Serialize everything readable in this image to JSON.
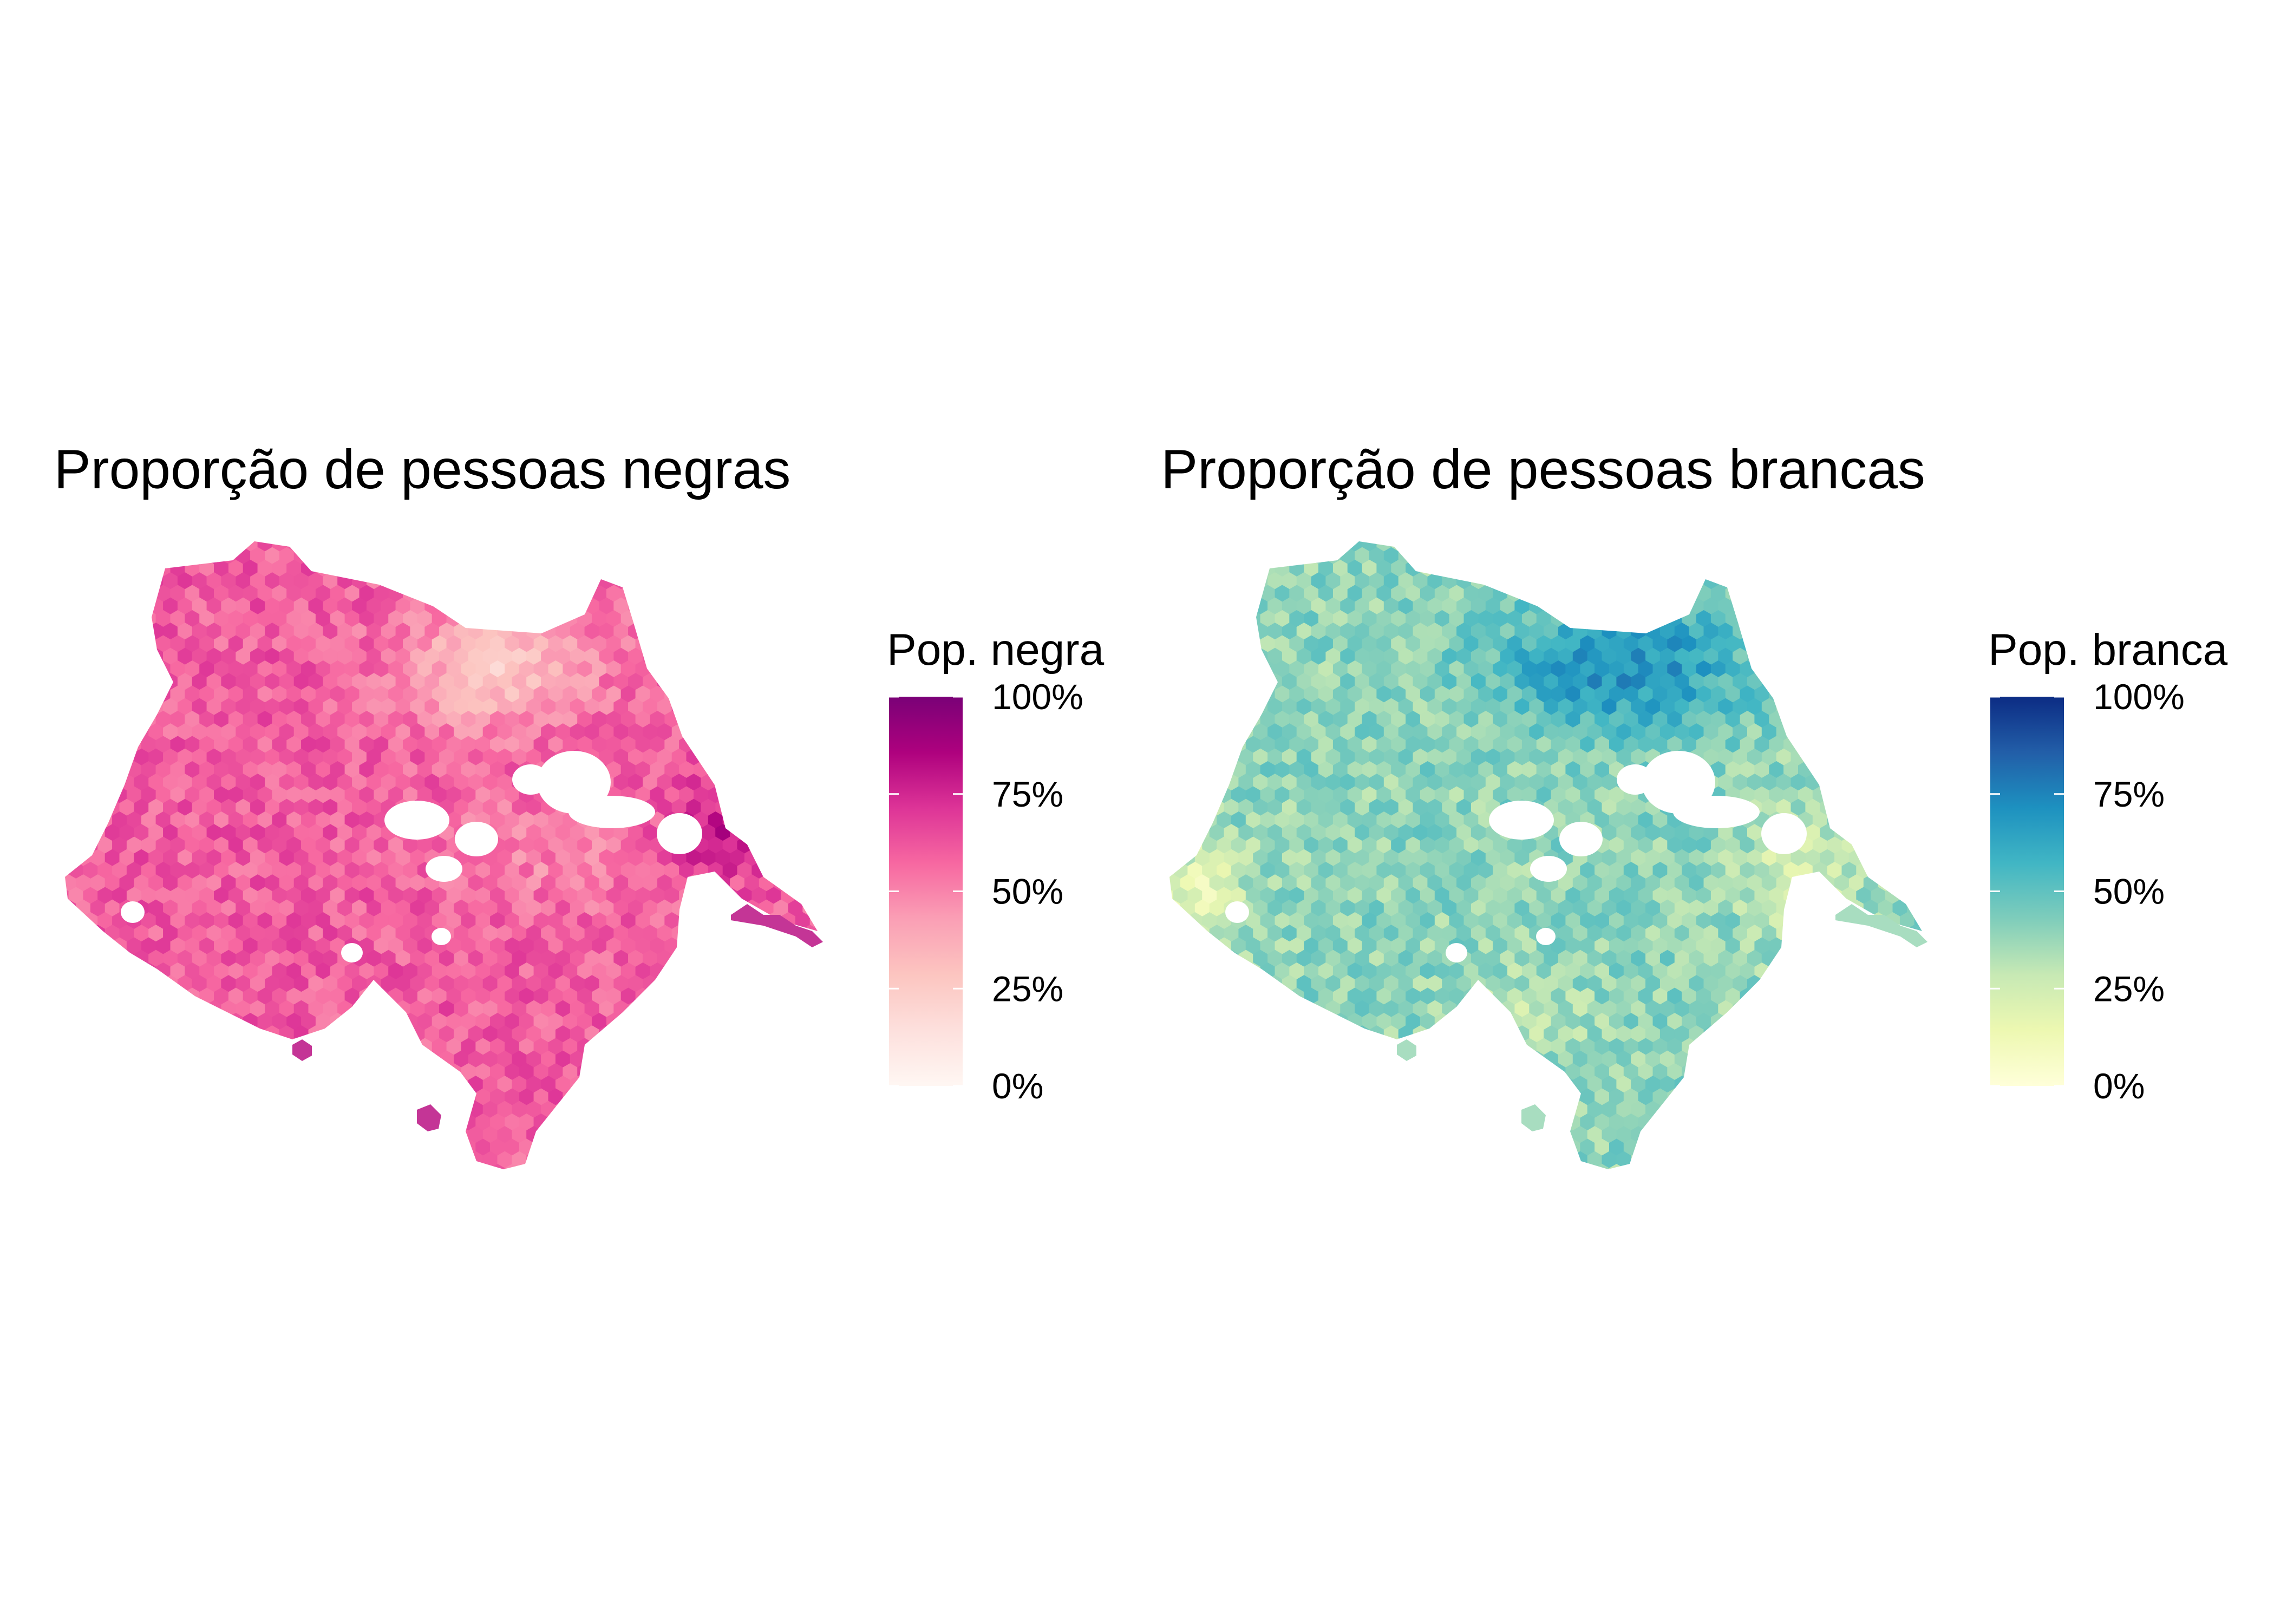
{
  "panels": [
    {
      "title": "Proporção de pessoas negras",
      "legend": {
        "title": "Pop. negra",
        "ticks": [
          "0%",
          "25%",
          "50%",
          "75%",
          "100%"
        ],
        "tick_values": [
          0,
          0.25,
          0.5,
          0.75,
          1
        ],
        "palette": [
          "#fff7f3",
          "#fde0dd",
          "#fcc5c0",
          "#fa9fb5",
          "#f768a1",
          "#dd3497",
          "#ae017e",
          "#7a0177"
        ]
      },
      "map": {
        "fill_scale": "proportion 0–1",
        "typical_value": 0.6,
        "low_region": "north-centre",
        "low_value": 0.35
      }
    },
    {
      "title": "Proporção de pessoas brancas",
      "legend": {
        "title": "Pop. branca",
        "ticks": [
          "0%",
          "25%",
          "50%",
          "75%",
          "100%"
        ],
        "tick_values": [
          0,
          0.25,
          0.5,
          0.75,
          1
        ],
        "palette": [
          "#ffffd9",
          "#edf8b1",
          "#c7e9b4",
          "#7fcdbb",
          "#41b6c4",
          "#1d91c0",
          "#225ea8",
          "#0c2c84"
        ]
      },
      "map": {
        "fill_scale": "proportion 0–1",
        "typical_value": 0.4,
        "high_region": "north-centre",
        "high_value": 0.65
      }
    }
  ]
}
